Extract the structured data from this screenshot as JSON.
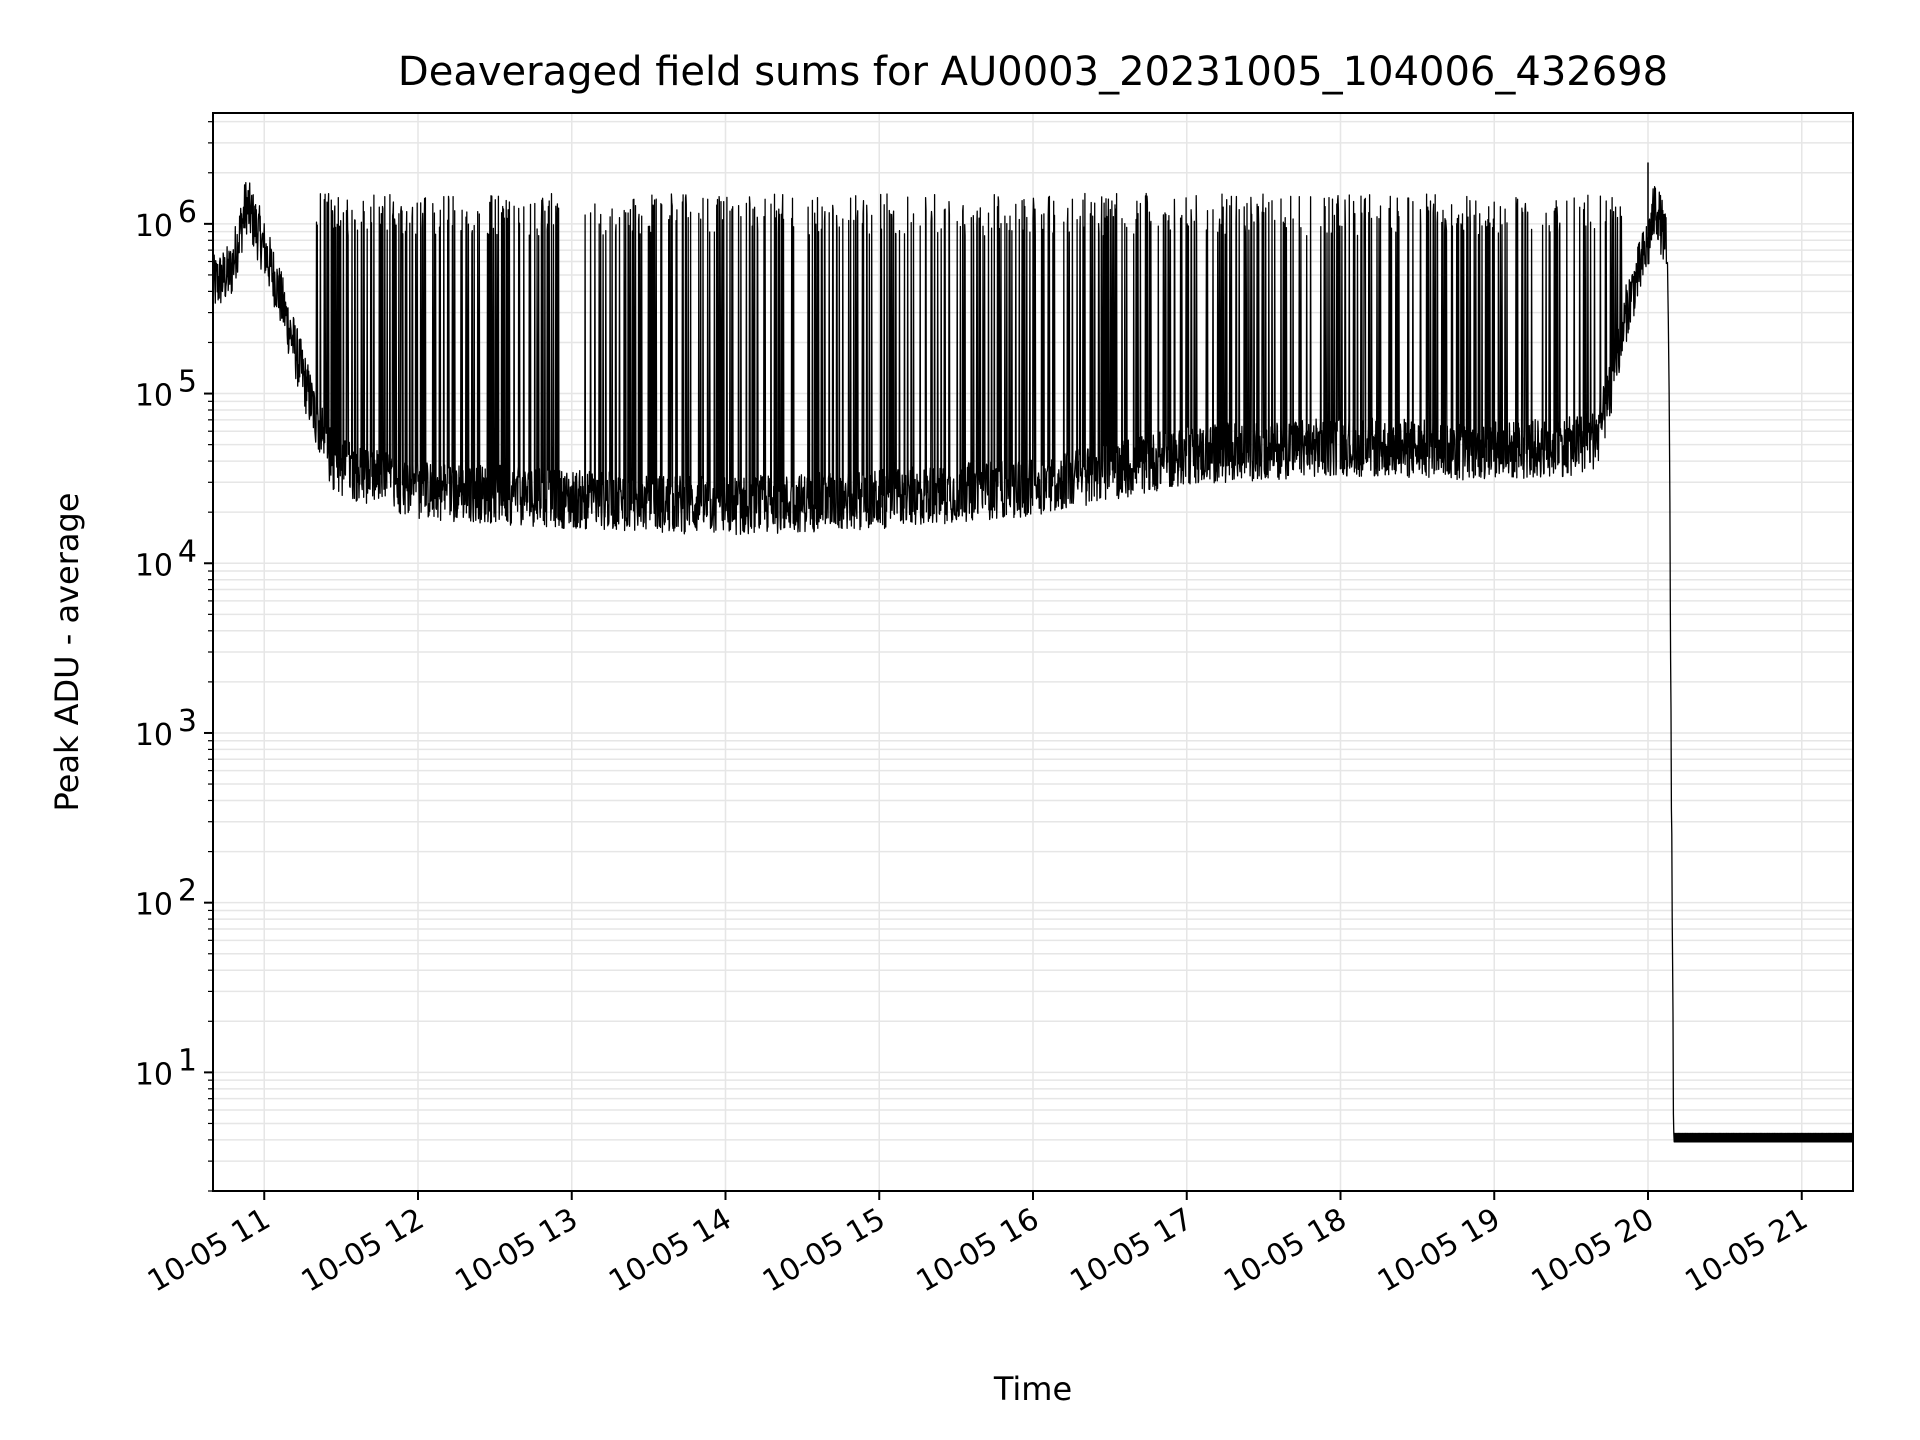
{
  "chart_data": {
    "type": "line",
    "title": "Deaveraged field sums for AU0003_20231005_104006_432698",
    "xlabel": "Time",
    "ylabel": "Peak ADU - average",
    "y_scale": "log",
    "ylim": [
      2,
      4500000
    ],
    "xlim": [
      "2023-10-05T10:40:00",
      "2023-10-05T21:20:00"
    ],
    "grid": true,
    "line_color": "#000000",
    "grid_color": "#e6e6e6",
    "x_ticks": [
      {
        "value": "2023-10-05T11:00:00",
        "label": "10-05 11"
      },
      {
        "value": "2023-10-05T12:00:00",
        "label": "10-05 12"
      },
      {
        "value": "2023-10-05T13:00:00",
        "label": "10-05 13"
      },
      {
        "value": "2023-10-05T14:00:00",
        "label": "10-05 14"
      },
      {
        "value": "2023-10-05T15:00:00",
        "label": "10-05 15"
      },
      {
        "value": "2023-10-05T16:00:00",
        "label": "10-05 16"
      },
      {
        "value": "2023-10-05T17:00:00",
        "label": "10-05 17"
      },
      {
        "value": "2023-10-05T18:00:00",
        "label": "10-05 18"
      },
      {
        "value": "2023-10-05T19:00:00",
        "label": "10-05 19"
      },
      {
        "value": "2023-10-05T20:00:00",
        "label": "10-05 20"
      },
      {
        "value": "2023-10-05T21:00:00",
        "label": "10-05 21"
      }
    ],
    "y_ticks": [
      {
        "value": 10,
        "base": "10",
        "exp": "1"
      },
      {
        "value": 100,
        "base": "10",
        "exp": "2"
      },
      {
        "value": 1000,
        "base": "10",
        "exp": "3"
      },
      {
        "value": 10000,
        "base": "10",
        "exp": "4"
      },
      {
        "value": 100000,
        "base": "10",
        "exp": "5"
      },
      {
        "value": 1000000,
        "base": "10",
        "exp": "6"
      }
    ],
    "series": [
      {
        "lower_envelope": [
          [
            "2023-10-05T10:40:00",
            400000
          ],
          [
            "2023-10-05T10:47:00",
            480000
          ],
          [
            "2023-10-05T10:53:00",
            1200000
          ],
          [
            "2023-10-05T10:58:00",
            800000
          ],
          [
            "2023-10-05T11:05:00",
            400000
          ],
          [
            "2023-10-05T11:13:00",
            150000
          ],
          [
            "2023-10-05T11:21:00",
            60000
          ],
          [
            "2023-10-05T11:27:00",
            35000
          ],
          [
            "2023-10-05T12:00:00",
            25000
          ],
          [
            "2023-10-05T13:00:00",
            22000
          ],
          [
            "2023-10-05T14:00:00",
            20000
          ],
          [
            "2023-10-05T15:00:00",
            22000
          ],
          [
            "2023-10-05T16:00:00",
            26000
          ],
          [
            "2023-10-05T17:00:00",
            40000
          ],
          [
            "2023-10-05T18:00:00",
            45000
          ],
          [
            "2023-10-05T19:00:00",
            42000
          ],
          [
            "2023-10-05T19:30:00",
            45000
          ],
          [
            "2023-10-05T19:40:00",
            50000
          ],
          [
            "2023-10-05T19:46:00",
            100000
          ],
          [
            "2023-10-05T19:52:00",
            300000
          ],
          [
            "2023-10-05T20:00:00",
            700000
          ],
          [
            "2023-10-05T20:03:00",
            1200000
          ],
          [
            "2023-10-05T20:07:00",
            700000
          ],
          [
            "2023-10-05T20:08:00",
            300000
          ],
          [
            "2023-10-05T20:10:00",
            3.9
          ],
          [
            "2023-10-05T21:20:00",
            3.9
          ]
        ],
        "spike_top": 1200000,
        "max_peak": [
          "2023-10-05T20:00:00",
          2300000
        ]
      }
    ]
  }
}
